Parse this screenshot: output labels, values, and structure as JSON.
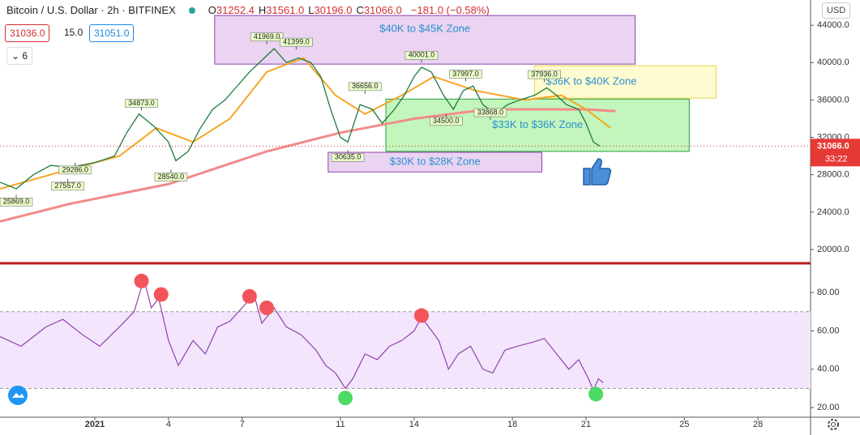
{
  "header": {
    "symbol": "Bitcoin / U.S. Dollar · 2h · BITFINEX",
    "ohlc": [
      [
        "O",
        "31252.4"
      ],
      [
        "H",
        "31561.0"
      ],
      [
        "L",
        "30196.0"
      ],
      [
        "C",
        "31066.0"
      ]
    ],
    "change": "−181.0 (−0.58%)",
    "bid": "31036.0",
    "spread": "15.0",
    "ask": "31051.0",
    "indicators": "6",
    "currency": "USD"
  },
  "chart_data": [
    {
      "type": "line",
      "xlim": [
        -2.86,
        30.14
      ],
      "xticks": [
        {
          "value": 1,
          "label": "2021"
        },
        4,
        7,
        11,
        14,
        18,
        21,
        25,
        28
      ],
      "ylim": [
        18700,
        46700
      ],
      "yticks": [
        {
          "value": 20000,
          "label": "20000.0"
        },
        {
          "value": 24000,
          "label": "24000.0"
        },
        {
          "value": 28000,
          "label": "28000.0"
        },
        {
          "value": 32000,
          "label": "32000.0"
        },
        {
          "value": 36000,
          "label": "36000.0"
        },
        {
          "value": 40000,
          "label": "40000.0"
        },
        {
          "value": 44000,
          "label": "44000.0"
        }
      ],
      "series": [
        {
          "color": "#f28b8b",
          "width": 3,
          "x": [
            -2.86,
            0,
            4,
            8,
            11,
            14,
            17,
            21,
            22.2
          ],
          "values": [
            23000,
            24900,
            27000,
            30500,
            32500,
            34000,
            35000,
            35000,
            34800
          ]
        },
        {
          "color": "#f5a623",
          "width": 2,
          "x": [
            -2.86,
            0,
            2,
            3.5,
            5,
            6.5,
            8,
            9.5,
            10.8,
            12,
            13.5,
            14.8,
            16.5,
            18.5,
            20,
            21,
            22
          ],
          "values": [
            26500,
            28600,
            30000,
            33000,
            31500,
            34000,
            39000,
            40500,
            36500,
            34500,
            36500,
            38500,
            37000,
            36000,
            36500,
            35000,
            33000
          ]
        },
        {
          "color": "#1e7a3c",
          "width": 1.3,
          "x": [
            -2.86,
            -2.2,
            -1.5,
            -0.8,
            0,
            1,
            1.8,
            2.3,
            2.8,
            3.4,
            4,
            4.3,
            4.8,
            5.3,
            5.8,
            6.3,
            6.8,
            7.3,
            7.9,
            8.3,
            8.8,
            9.3,
            9.8,
            10.2,
            10.6,
            11,
            11.3,
            11.8,
            12.3,
            12.7,
            13.2,
            13.6,
            14,
            14.3,
            14.7,
            15.2,
            15.6,
            16,
            16.4,
            16.8,
            17.3,
            17.8,
            18.3,
            18.9,
            19.4,
            19.8,
            20.2,
            20.7,
            21,
            21.3,
            21.56
          ],
          "values": [
            27200,
            26500,
            28000,
            29000,
            28800,
            29300,
            30000,
            32500,
            34500,
            33200,
            31500,
            29500,
            30500,
            33000,
            35000,
            36000,
            37500,
            39000,
            40500,
            41500,
            40000,
            40500,
            40000,
            38500,
            35000,
            32000,
            31500,
            35500,
            35000,
            33500,
            35000,
            36500,
            38500,
            39500,
            39000,
            36500,
            35000,
            37000,
            37500,
            35500,
            34500,
            35500,
            36000,
            36500,
            37300,
            36500,
            35500,
            35000,
            33500,
            31500,
            31066
          ]
        }
      ],
      "price_labels": [
        {
          "x": 8.0,
          "value": 41969,
          "label": "41969.0"
        },
        {
          "x": 9.2,
          "value": 41399,
          "label": "41399.0"
        },
        {
          "x": 14.3,
          "value": 40001,
          "label": "40001.0"
        },
        {
          "x": 16.1,
          "value": 37997,
          "label": "37997.0"
        },
        {
          "x": 19.3,
          "value": 37936,
          "label": "37936.0"
        },
        {
          "x": 12,
          "value": 36656,
          "label": "36656.0"
        },
        {
          "x": 2.9,
          "value": 34873,
          "label": "34873.0"
        },
        {
          "x": 15.3,
          "value": 34500,
          "label": "34500.0"
        },
        {
          "x": 17.1,
          "value": 33868,
          "label": "33868.0"
        },
        {
          "x": 11.3,
          "value": 30635,
          "label": "30635.0"
        },
        {
          "x": 0.2,
          "value": 29286,
          "label": "29286.0"
        },
        {
          "x": 4.1,
          "value": 28540,
          "label": "28540.0"
        },
        {
          "x": -0.1,
          "value": 27557,
          "label": "27557.0"
        },
        {
          "x": -2.2,
          "value": 25869,
          "label": "25869.0"
        }
      ],
      "zones": [
        {
          "x": [
            5.88,
            23.0
          ],
          "y": [
            39840,
            45040
          ],
          "label": "$40K to $45K Zone",
          "color": "#e6ccf0",
          "border": "#8e44ad"
        },
        {
          "x": [
            18.9,
            26.3
          ],
          "y": [
            36200,
            39670
          ],
          "label": "$36K to $40K Zone",
          "color": "#fffac8",
          "border": "#e8d44d"
        },
        {
          "x": [
            12.85,
            25.2
          ],
          "y": [
            30500,
            36100
          ],
          "label": "$33K to $36K Zone",
          "color": "#b8f5b0",
          "border": "#2e9e3e"
        },
        {
          "x": [
            10.5,
            19.2
          ],
          "y": [
            28300,
            30400
          ],
          "label": "$30K to $28K Zone",
          "color": "#e6ccf0",
          "border": "#8e44ad"
        }
      ],
      "last": {
        "value": 31066,
        "label": "31066.0",
        "countdown": "33:22"
      }
    },
    {
      "type": "line",
      "xlim": [
        -2.86,
        30.14
      ],
      "ylim": [
        15,
        94.4
      ],
      "yticks": [
        {
          "value": 20,
          "label": "20.00"
        },
        {
          "value": 40,
          "label": "40.00"
        },
        {
          "value": 60,
          "label": "60.00"
        },
        {
          "value": 80,
          "label": "80.00"
        }
      ],
      "bands": [
        30,
        70
      ],
      "series": [
        {
          "color": "#8e44ad",
          "x": [
            -2.86,
            -2,
            -1,
            -0.3,
            0.5,
            1.2,
            2,
            2.6,
            3,
            3.3,
            3.6,
            4,
            4.4,
            5,
            5.5,
            6,
            6.5,
            7.2,
            7.5,
            7.8,
            8.3,
            8.8,
            9.4,
            10,
            10.4,
            10.8,
            11.2,
            11.5,
            12,
            12.5,
            13,
            13.5,
            14,
            14.3,
            14.6,
            15,
            15.4,
            15.8,
            16.3,
            16.8,
            17.2,
            17.7,
            18.2,
            18.8,
            19.3,
            19.8,
            20.3,
            20.7,
            21.1,
            21.3,
            21.5,
            21.7
          ],
          "values": [
            57,
            52,
            62,
            66,
            58,
            52,
            62,
            70,
            87,
            72,
            77,
            55,
            42,
            55,
            48,
            62,
            65,
            75,
            78,
            64,
            72,
            62,
            58,
            50,
            42,
            38,
            30,
            35,
            48,
            45,
            52,
            55,
            60,
            67,
            62,
            55,
            40,
            48,
            52,
            40,
            38,
            50,
            52,
            54,
            56,
            48,
            40,
            45,
            35,
            29,
            35,
            33
          ]
        }
      ],
      "highlights": [
        {
          "x": 2.9,
          "y": 86,
          "color": "#f2545b"
        },
        {
          "x": 3.7,
          "y": 79,
          "color": "#f2545b"
        },
        {
          "x": 7.3,
          "y": 78,
          "color": "#f2545b"
        },
        {
          "x": 8.0,
          "y": 72,
          "color": "#f2545b"
        },
        {
          "x": 14.3,
          "y": 68,
          "color": "#f2545b"
        },
        {
          "x": 11.2,
          "y": 25,
          "color": "#4cd964"
        },
        {
          "x": 21.4,
          "y": 27,
          "color": "#4cd964"
        }
      ]
    }
  ]
}
